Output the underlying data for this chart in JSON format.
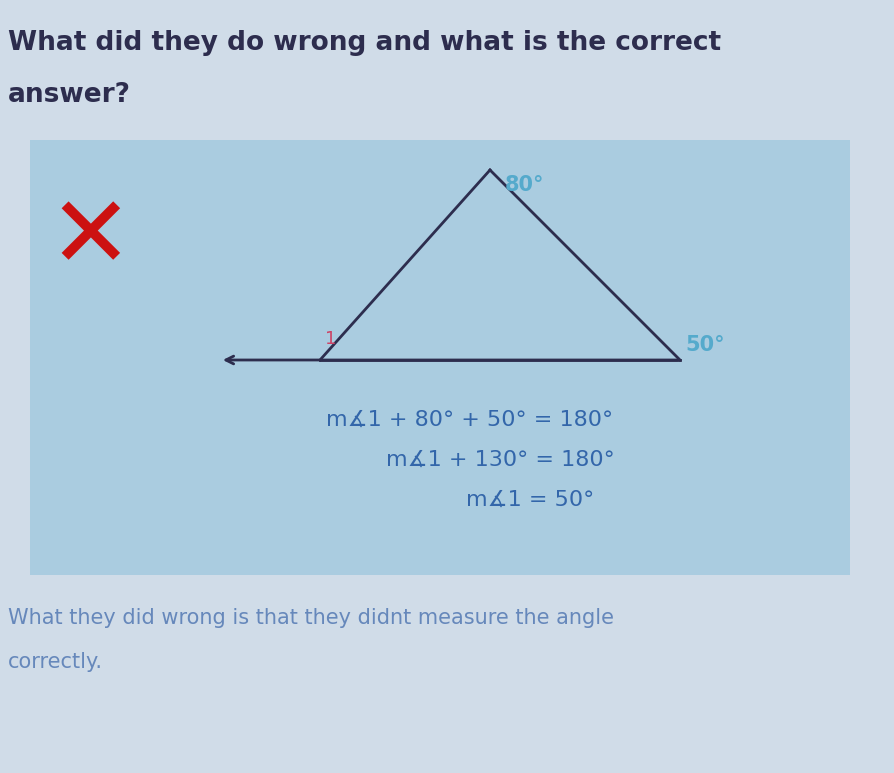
{
  "title_line1": "What did they do wrong and what is the correct",
  "title_line2": "answer?",
  "page_bg_color": "#d0dce8",
  "box_color": "#aacce0",
  "title_color": "#2d2d4e",
  "x_color": "#cc1111",
  "triangle_color": "#2d2d4e",
  "angle_label_80": "80°",
  "angle_label_50": "50°",
  "angle_label_1": "1",
  "angle_80_color": "#55aacc",
  "angle_50_color": "#55aacc",
  "angle_1_color": "#cc4466",
  "eq_line1": "m∡1 + 80° + 50° = 180°",
  "eq_line2": "m∡1 + 130° = 180°",
  "eq_line3": "m∡1 = 50°",
  "eq_color": "#3366aa",
  "footer_line1": "What they did wrong is that they didnt measure the angle",
  "footer_line2": "correctly.",
  "footer_color": "#6688bb"
}
